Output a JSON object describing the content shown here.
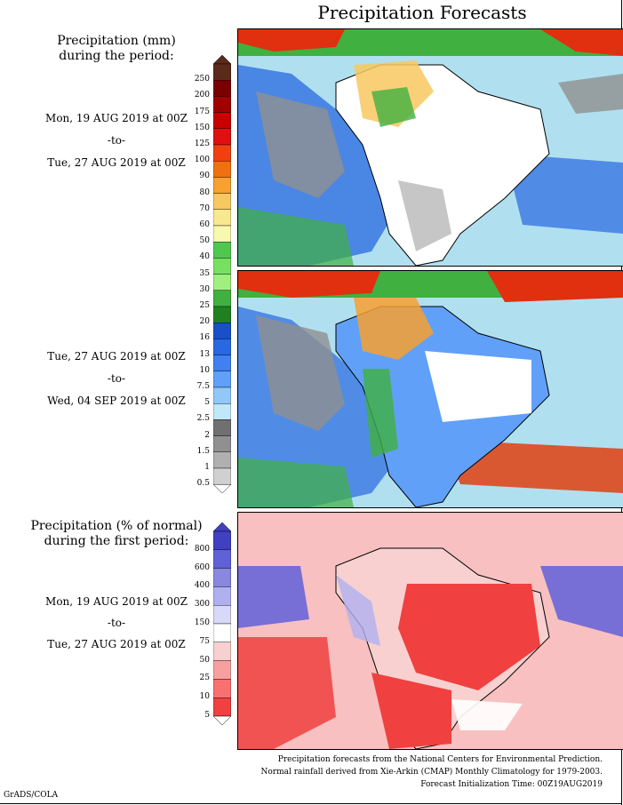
{
  "title": "Precipitation Forecasts",
  "panel1": {
    "header_line1": "Precipitation (mm)",
    "header_line2": "during the period:",
    "start": "Mon, 19 AUG 2019 at 00Z",
    "sep": "-to-",
    "end": "Tue, 27 AUG 2019 at 00Z"
  },
  "panel2": {
    "start": "Tue, 27 AUG 2019 at 00Z",
    "sep": "-to-",
    "end": "Wed, 04 SEP 2019 at 00Z"
  },
  "panel3": {
    "header_line1": "Precipitation (% of normal)",
    "header_line2": "during the first period:",
    "start": "Mon, 19 AUG 2019 at 00Z",
    "sep": "-to-",
    "end": "Tue, 27 AUG 2019 at 00Z"
  },
  "precip_scale": {
    "labels": [
      "250",
      "200",
      "175",
      "150",
      "125",
      "100",
      "90",
      "80",
      "70",
      "60",
      "50",
      "40",
      "35",
      "30",
      "25",
      "20",
      "16",
      "13",
      "10",
      "7.5",
      "5",
      "2.5",
      "2",
      "1.5",
      "1",
      "0.5"
    ],
    "colors": [
      "#5a2a1a",
      "#7a0000",
      "#a00000",
      "#c80000",
      "#e01010",
      "#f04010",
      "#f07010",
      "#f8a030",
      "#f8c860",
      "#f8e890",
      "#f8f8b0",
      "#50c850",
      "#78e060",
      "#a0f080",
      "#40b040",
      "#208020",
      "#1850c8",
      "#2868e0",
      "#4080f0",
      "#60a0f8",
      "#90c8f8",
      "#c0e8f8",
      "#707070",
      "#909090",
      "#b0b0b0",
      "#d0d0d0"
    ]
  },
  "pct_scale": {
    "labels": [
      "800",
      "600",
      "400",
      "300",
      "150",
      "75",
      "50",
      "25",
      "10",
      "5"
    ],
    "colors": [
      "#4040c0",
      "#6060d8",
      "#8888e0",
      "#b0b0f0",
      "#d8d8f8",
      "#ffffff",
      "#f8d0d0",
      "#f8a0a0",
      "#f87070",
      "#f04040"
    ]
  },
  "footer": {
    "line1": "Precipitation forecasts from the National Centers for Environmental Prediction.",
    "line2": "Normal rainfall derived from Xie-Arkin (CMAP) Monthly Climatology for 1979-2003.",
    "line3": "Forecast Initialization Time: 00Z19AUG2019"
  },
  "credit": "GrADS/COLA"
}
